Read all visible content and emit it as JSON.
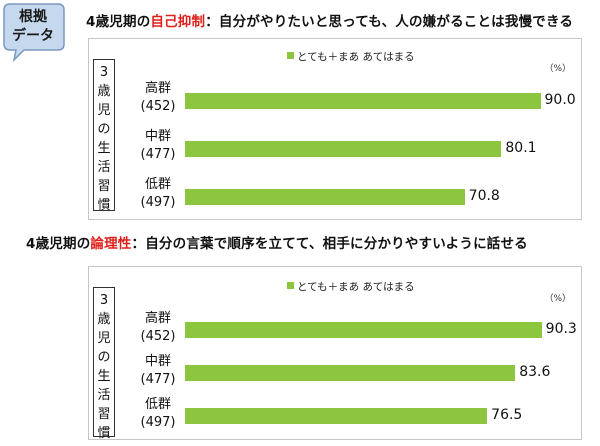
{
  "badge": {
    "line1": "根拠",
    "line2": "データ"
  },
  "axis_label_chars": [
    "3",
    "歳",
    "児",
    "の",
    "生",
    "活",
    "習",
    "慣"
  ],
  "chart_data": [
    {
      "type": "bar",
      "orientation": "horizontal",
      "title": {
        "prefix": "4歳児期の",
        "highlight": "自己抑制",
        "suffix": "：自分がやりたいと思っても、人の嫌がることは我慢できる"
      },
      "ylabel": "3歳児の生活習慣",
      "unit": "（%）",
      "series": [
        {
          "name": "とても＋まあ あてはまる",
          "values": [
            90.0,
            80.1,
            70.8
          ]
        }
      ],
      "categories": [
        {
          "name": "高群",
          "n": "(452)"
        },
        {
          "name": "中群",
          "n": "(477)"
        },
        {
          "name": "低群",
          "n": "(497)"
        }
      ],
      "value_labels": [
        "90.0",
        "80.1",
        "70.8"
      ],
      "xlim": [
        0,
        100
      ],
      "highlight_color": "#e0201b",
      "bar_color": "#8cc63f"
    },
    {
      "type": "bar",
      "orientation": "horizontal",
      "title": {
        "prefix": "4歳児期の",
        "highlight": "論理性",
        "suffix": "：自分の言葉で順序を立てて、相手に分かりやすいように話せる"
      },
      "ylabel": "3歳児の生活習慣",
      "unit": "（%）",
      "series": [
        {
          "name": "とても＋まあ あてはまる",
          "values": [
            90.3,
            83.6,
            76.5
          ]
        }
      ],
      "categories": [
        {
          "name": "高群",
          "n": "(452)"
        },
        {
          "name": "中群",
          "n": "(477)"
        },
        {
          "name": "低群",
          "n": "(497)"
        }
      ],
      "value_labels": [
        "90.3",
        "83.6",
        "76.5"
      ],
      "xlim": [
        0,
        100
      ],
      "highlight_color": "#e0201b",
      "bar_color": "#8cc63f"
    }
  ]
}
